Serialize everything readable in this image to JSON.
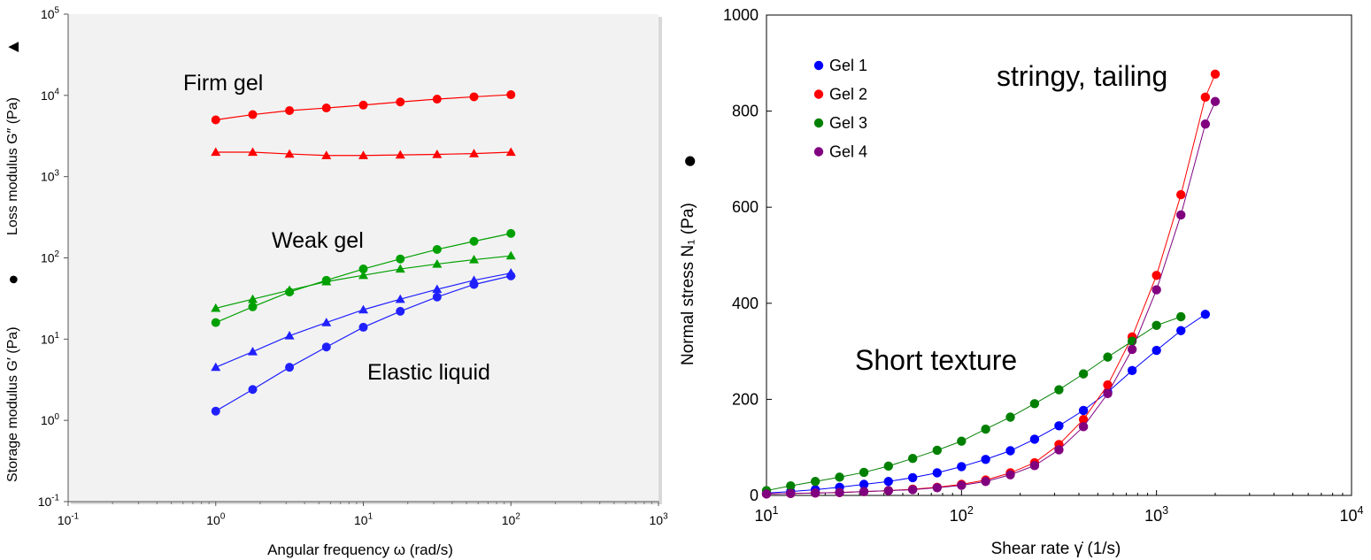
{
  "chart_data": [
    {
      "type": "scatter",
      "xlabel": "Angular frequency  ω  (rad/s)",
      "ylabel_storage": "Storage modulus  G′  (Pa)",
      "ylabel_loss": "Loss modulus  G″  (Pa)",
      "ylabel_storage_marker": "●",
      "ylabel_loss_marker": "▲",
      "xscale": "log",
      "yscale": "log",
      "xlim": [
        0.1,
        1000
      ],
      "ylim": [
        0.1,
        100000
      ],
      "xticks": [
        {
          "base": "10",
          "exp": "-1"
        },
        {
          "base": "10",
          "exp": "0"
        },
        {
          "base": "10",
          "exp": "1"
        },
        {
          "base": "10",
          "exp": "2"
        },
        {
          "base": "10",
          "exp": "3"
        }
      ],
      "yticks": [
        {
          "base": "10",
          "exp": "-1"
        },
        {
          "base": "10",
          "exp": "0"
        },
        {
          "base": "10",
          "exp": "1"
        },
        {
          "base": "10",
          "exp": "2"
        },
        {
          "base": "10",
          "exp": "3"
        },
        {
          "base": "10",
          "exp": "4"
        },
        {
          "base": "10",
          "exp": "5"
        }
      ],
      "grid": false,
      "annotations": [
        "Firm gel",
        "Weak gel",
        "Elastic liquid"
      ],
      "series": [
        {
          "color": "#ff0000",
          "marker": "circle",
          "x": [
            1,
            1.78,
            3.16,
            5.62,
            10,
            17.8,
            31.6,
            56.2,
            100
          ],
          "y": [
            5000,
            5800,
            6500,
            7000,
            7600,
            8300,
            9000,
            9600,
            10200
          ]
        },
        {
          "color": "#ff0000",
          "marker": "triangle",
          "x": [
            1,
            1.78,
            3.16,
            5.62,
            10,
            17.8,
            31.6,
            56.2,
            100
          ],
          "y": [
            2000,
            2000,
            1900,
            1820,
            1820,
            1850,
            1880,
            1920,
            2000
          ]
        },
        {
          "color": "#00a000",
          "marker": "circle",
          "x": [
            1,
            1.78,
            3.16,
            5.62,
            10,
            17.8,
            31.6,
            56.2,
            100
          ],
          "y": [
            16,
            25,
            38,
            53,
            73,
            97,
            127,
            160,
            200
          ]
        },
        {
          "color": "#00a000",
          "marker": "triangle",
          "x": [
            1,
            1.78,
            3.16,
            5.62,
            10,
            17.8,
            31.6,
            56.2,
            100
          ],
          "y": [
            24,
            31,
            40,
            51,
            61,
            73,
            84,
            95,
            106
          ]
        },
        {
          "color": "#2020ff",
          "marker": "circle",
          "x": [
            1,
            1.78,
            3.16,
            5.62,
            10,
            17.8,
            31.6,
            56.2,
            100
          ],
          "y": [
            1.3,
            2.4,
            4.5,
            8,
            14,
            22,
            33,
            47,
            60
          ]
        },
        {
          "color": "#2020ff",
          "marker": "triangle",
          "x": [
            1,
            1.78,
            3.16,
            5.62,
            10,
            17.8,
            31.6,
            56.2,
            100
          ],
          "y": [
            4.5,
            7,
            11,
            16,
            23,
            31,
            41,
            53,
            65
          ]
        }
      ]
    },
    {
      "type": "scatter",
      "xlabel": "Shear rate  γ̇  (1/s)",
      "ylabel": "Normal stress  N₁  (Pa)",
      "ylabel_marker": "●",
      "xscale": "log",
      "yscale": "linear",
      "xlim": [
        10,
        10000
      ],
      "ylim": [
        0,
        1000
      ],
      "xticks": [
        {
          "base": "10",
          "exp": "1"
        },
        {
          "base": "10",
          "exp": "2"
        },
        {
          "base": "10",
          "exp": "3"
        },
        {
          "base": "10",
          "exp": "4"
        }
      ],
      "yticks": [
        "0",
        "200",
        "400",
        "600",
        "800",
        "1000"
      ],
      "grid": false,
      "legend_position": "top-left",
      "annotations": [
        "stringy, tailing",
        "Short texture"
      ],
      "series": [
        {
          "name": "Gel 1",
          "color": "#0000ff",
          "x": [
            10,
            13.3,
            17.8,
            23.7,
            31.6,
            42.2,
            56.2,
            75,
            100,
            133,
            178,
            237,
            316,
            422,
            562,
            750,
            1000,
            1334,
            1780
          ],
          "y": [
            5,
            8,
            12,
            17,
            23,
            29,
            37,
            47,
            60,
            75,
            93,
            117,
            145,
            177,
            215,
            260,
            302,
            343,
            377
          ]
        },
        {
          "name": "Gel 2",
          "color": "#ff0000",
          "x": [
            10,
            13.3,
            17.8,
            23.7,
            31.6,
            42.2,
            56.2,
            75,
            100,
            133,
            178,
            237,
            316,
            422,
            562,
            750,
            1000,
            1334,
            1780,
            2000
          ],
          "y": [
            3,
            4,
            5,
            6,
            8,
            10,
            13,
            17,
            23,
            32,
            47,
            68,
            106,
            158,
            230,
            330,
            458,
            626,
            829,
            877
          ]
        },
        {
          "name": "Gel 3",
          "color": "#008000",
          "x": [
            10,
            13.3,
            17.8,
            23.7,
            31.6,
            42.2,
            56.2,
            75,
            100,
            133,
            178,
            237,
            316,
            422,
            562,
            750,
            1000,
            1334
          ],
          "y": [
            10,
            20,
            29,
            38,
            48,
            61,
            77,
            94,
            113,
            138,
            163,
            191,
            220,
            253,
            288,
            321,
            354,
            372
          ]
        },
        {
          "name": "Gel 4",
          "color": "#800080",
          "x": [
            10,
            13.3,
            17.8,
            23.7,
            31.6,
            42.2,
            56.2,
            75,
            100,
            133,
            178,
            237,
            316,
            422,
            562,
            750,
            1000,
            1334,
            1780,
            2000
          ],
          "y": [
            3,
            4,
            5,
            6,
            8,
            10,
            12,
            16,
            21,
            29,
            43,
            62,
            95,
            143,
            212,
            304,
            428,
            584,
            773,
            820
          ]
        }
      ]
    }
  ]
}
